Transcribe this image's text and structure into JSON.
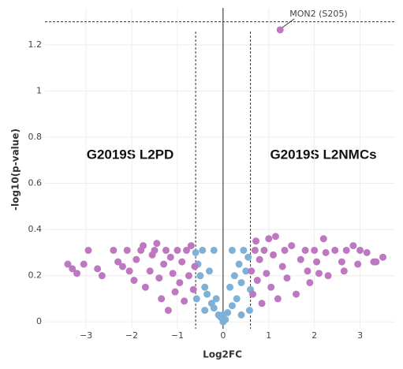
{
  "chart_data": {
    "type": "scatter",
    "x_label": "Log2FC",
    "y_label": "-log10(p-value)",
    "xlim": [
      -3.9,
      3.75
    ],
    "ylim": [
      -0.03,
      1.36
    ],
    "xticks": [
      {
        "value": -3,
        "label": "−3"
      },
      {
        "value": -2,
        "label": "−2"
      },
      {
        "value": -1,
        "label": "−1"
      },
      0,
      1,
      2,
      3
    ],
    "yticks": [
      0,
      0.2,
      0.4,
      0.6,
      0.8,
      1,
      1.2
    ],
    "grid": true,
    "thresholds": {
      "x": [
        -0.6,
        0.6
      ],
      "y": 1.3
    },
    "annotations": [
      {
        "text": "MON2 (S205)",
        "x": 1.25,
        "y": 1.265
      }
    ],
    "group_labels": [
      "G2019S L2PD",
      "G2019S L2NMCs"
    ],
    "series": [
      {
        "color": "#7fb0d6",
        "x": [
          -0.6,
          -0.55,
          -0.5,
          -0.45,
          -0.4,
          -0.35,
          -0.3,
          -0.25,
          -0.2,
          -0.15,
          -0.1,
          -0.05,
          0,
          0.05,
          0.1,
          0.15,
          0.2,
          0.25,
          0.3,
          0.35,
          0.4,
          0.45,
          0.5,
          0.55,
          0.6,
          -0.58,
          0.58,
          -0.4,
          0.4,
          0.2,
          -0.2,
          0
        ],
        "values": [
          0.3,
          0.25,
          0.2,
          0.31,
          0.15,
          0.12,
          0.22,
          0.08,
          0.06,
          0.1,
          0.03,
          0.02,
          0,
          0.01,
          0.04,
          0.15,
          0.07,
          0.2,
          0.1,
          0.25,
          0.17,
          0.31,
          0.22,
          0.28,
          0.14,
          0.1,
          0.05,
          0.05,
          0.03,
          0.31,
          0.31,
          0.03
        ]
      },
      {
        "color": "#bd78c1",
        "x": [
          -3.4,
          -3.3,
          -3.2,
          -3.05,
          -2.95,
          -2.75,
          -2.65,
          -2.4,
          -2.3,
          -2.2,
          -2.1,
          -2.05,
          -1.95,
          -1.9,
          -1.8,
          -1.75,
          -1.7,
          -1.6,
          -1.55,
          -1.5,
          -1.45,
          -1.4,
          -1.35,
          -1.3,
          -1.25,
          -1.2,
          -1.15,
          -1.1,
          -1.05,
          -1,
          -0.95,
          -0.9,
          -0.85,
          -0.8,
          -0.75,
          -0.7,
          -0.65,
          -0.62,
          0.62,
          0.65,
          0.7,
          0.72,
          0.75,
          0.8,
          0.85,
          0.9,
          0.95,
          1,
          1.05,
          1.1,
          1.15,
          1.2,
          1.25,
          1.3,
          1.35,
          1.4,
          1.5,
          1.6,
          1.7,
          1.8,
          1.85,
          1.9,
          2,
          2.05,
          2.1,
          2.2,
          2.25,
          2.3,
          2.45,
          2.6,
          2.65,
          2.7,
          2.85,
          2.95,
          3,
          3.15,
          3.3,
          3.35,
          3.5
        ],
        "values": [
          0.25,
          0.23,
          0.21,
          0.25,
          0.31,
          0.23,
          0.2,
          0.31,
          0.26,
          0.24,
          0.31,
          0.22,
          0.18,
          0.27,
          0.31,
          0.33,
          0.15,
          0.22,
          0.29,
          0.31,
          0.34,
          0.19,
          0.1,
          0.25,
          0.31,
          0.05,
          0.28,
          0.21,
          0.13,
          0.31,
          0.17,
          0.26,
          0.09,
          0.31,
          0.2,
          0.33,
          0.14,
          0.24,
          0.22,
          0.12,
          0.31,
          0.35,
          0.18,
          0.27,
          0.08,
          0.31,
          0.21,
          0.36,
          0.15,
          0.29,
          0.37,
          0.1,
          1.265,
          0.24,
          0.31,
          0.19,
          0.33,
          0.12,
          0.27,
          0.31,
          0.22,
          0.17,
          0.31,
          0.26,
          0.21,
          0.36,
          0.3,
          0.2,
          0.31,
          0.26,
          0.22,
          0.31,
          0.33,
          0.25,
          0.31,
          0.3,
          0.26,
          0.26,
          0.28
        ]
      }
    ]
  }
}
